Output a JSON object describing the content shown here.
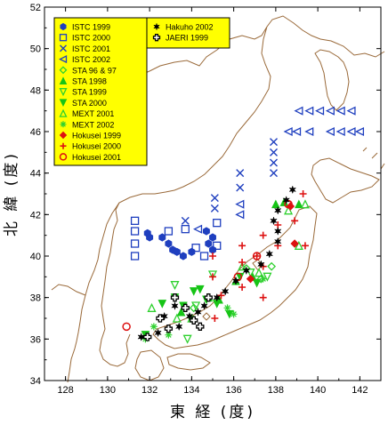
{
  "chart_data": {
    "type": "scatter",
    "xlabel": "東 経 (度)",
    "ylabel": "北 緯 (度)",
    "xlim": [
      127,
      143
    ],
    "ylim": [
      34,
      52
    ],
    "x_ticks": [
      "128",
      "130",
      "132",
      "134",
      "136",
      "138",
      "140",
      "142"
    ],
    "y_ticks": [
      "34",
      "36",
      "38",
      "40",
      "42",
      "44",
      "46",
      "48",
      "50",
      "52"
    ],
    "legend_placement": "top-left",
    "series": [
      {
        "name": "ISTC 1999",
        "marker": "filled-hexagon",
        "color": "#1f3fbf",
        "points": [
          [
            131.9,
            41.1
          ],
          [
            132.0,
            40.9
          ],
          [
            132.6,
            40.9
          ],
          [
            132.9,
            40.6
          ],
          [
            133.1,
            40.3
          ],
          [
            133.3,
            40.2
          ],
          [
            133.6,
            40.0
          ],
          [
            134.0,
            40.2
          ],
          [
            134.8,
            40.6
          ],
          [
            135.0,
            40.3
          ],
          [
            134.7,
            41.2
          ],
          [
            135.0,
            40.9
          ]
        ]
      },
      {
        "name": "ISTC 2000",
        "marker": "open-square",
        "color": "#1f3fbf",
        "points": [
          [
            131.3,
            41.7
          ],
          [
            131.3,
            41.2
          ],
          [
            131.3,
            40.6
          ],
          [
            131.3,
            40.0
          ],
          [
            132.9,
            41.2
          ],
          [
            133.7,
            41.3
          ],
          [
            134.2,
            40.4
          ],
          [
            134.6,
            40.0
          ],
          [
            135.2,
            41.6
          ],
          [
            135.2,
            40.5
          ]
        ]
      },
      {
        "name": "ISTC 2001",
        "marker": "x",
        "color": "#1f3fbf",
        "points": [
          [
            133.7,
            41.7
          ],
          [
            135.1,
            42.3
          ],
          [
            135.1,
            42.8
          ],
          [
            136.3,
            43.3
          ],
          [
            136.3,
            44.0
          ],
          [
            137.9,
            44.0
          ],
          [
            137.9,
            44.5
          ],
          [
            137.9,
            45.0
          ],
          [
            137.9,
            45.5
          ]
        ]
      },
      {
        "name": "ISTC 2002",
        "marker": "open-triangle-left",
        "color": "#1f3fbf",
        "points": [
          [
            134.3,
            41.3
          ],
          [
            136.3,
            42.5
          ],
          [
            136.3,
            42.0
          ],
          [
            138.6,
            46.0
          ],
          [
            139.0,
            46.0
          ],
          [
            139.6,
            46.0
          ],
          [
            139.1,
            47.0
          ],
          [
            139.6,
            47.0
          ],
          [
            140.1,
            47.0
          ],
          [
            140.6,
            47.0
          ],
          [
            141.1,
            47.0
          ],
          [
            141.6,
            47.0
          ],
          [
            140.6,
            46.0
          ],
          [
            141.1,
            46.0
          ],
          [
            141.6,
            46.0
          ],
          [
            142.0,
            46.0
          ]
        ]
      },
      {
        "name": "STA 96 & 97",
        "marker": "open-diamond",
        "color": "#2fd12f",
        "points": [
          [
            134.1,
            37.5
          ],
          [
            136.6,
            39.4
          ],
          [
            137.3,
            38.9
          ],
          [
            137.8,
            39.5
          ]
        ]
      },
      {
        "name": "STA 1998",
        "marker": "filled-triangle-up",
        "color": "#16c416",
        "points": [
          [
            133.5,
            37.3
          ],
          [
            134.8,
            38.0
          ],
          [
            135.3,
            37.9
          ],
          [
            136.1,
            38.8
          ],
          [
            136.9,
            39.0
          ],
          [
            138.0,
            42.5
          ],
          [
            138.4,
            42.6
          ],
          [
            139.1,
            42.5
          ]
        ]
      },
      {
        "name": "STA 1999",
        "marker": "open-triangle-down",
        "color": "#2fd12f",
        "points": [
          [
            133.2,
            38.6
          ],
          [
            133.8,
            36.0
          ],
          [
            134.2,
            37.6
          ],
          [
            135.0,
            39.1
          ],
          [
            136.8,
            39.2
          ],
          [
            137.6,
            39.0
          ]
        ]
      },
      {
        "name": "STA 2000",
        "marker": "filled-triangle-down",
        "color": "#16c416",
        "points": [
          [
            131.8,
            36.2
          ],
          [
            132.6,
            37.7
          ],
          [
            133.2,
            38.0
          ],
          [
            133.6,
            37.6
          ],
          [
            134.1,
            38.3
          ],
          [
            134.4,
            38.4
          ],
          [
            134.7,
            37.9
          ],
          [
            135.2,
            37.7
          ],
          [
            135.8,
            37.2
          ],
          [
            136.3,
            39.0
          ],
          [
            137.1,
            38.7
          ]
        ]
      },
      {
        "name": "MEXT 2001",
        "marker": "open-triangle-up",
        "color": "#2fd12f",
        "points": [
          [
            132.1,
            37.5
          ],
          [
            133.3,
            37.0
          ],
          [
            134.0,
            37.0
          ],
          [
            136.4,
            39.5
          ],
          [
            137.2,
            39.2
          ],
          [
            138.6,
            42.2
          ],
          [
            139.1,
            40.5
          ],
          [
            139.4,
            42.5
          ]
        ]
      },
      {
        "name": "MEXT 2002",
        "marker": "asterisk",
        "color": "#2fd12f",
        "points": [
          [
            131.8,
            36.0
          ],
          [
            132.2,
            36.6
          ],
          [
            132.9,
            36.2
          ],
          [
            134.0,
            37.0
          ],
          [
            135.7,
            37.5
          ],
          [
            136.0,
            37.2
          ],
          [
            137.4,
            38.9
          ]
        ]
      },
      {
        "name": "Hokusei 1999",
        "marker": "filled-diamond",
        "color": "#dd1111",
        "points": [
          [
            136.8,
            38.9
          ],
          [
            138.7,
            42.4
          ],
          [
            138.9,
            40.6
          ]
        ]
      },
      {
        "name": "Hokusei 2000",
        "marker": "plus",
        "color": "#dd1111",
        "points": [
          [
            135.0,
            40.0
          ],
          [
            135.0,
            39.0
          ],
          [
            135.1,
            37.0
          ],
          [
            135.4,
            38.1
          ],
          [
            136.4,
            40.5
          ],
          [
            136.4,
            39.7
          ],
          [
            136.4,
            38.5
          ],
          [
            137.4,
            38.0
          ],
          [
            137.4,
            39.5
          ],
          [
            137.4,
            41.0
          ],
          [
            138.1,
            40.5
          ],
          [
            138.1,
            41.5
          ],
          [
            138.9,
            41.7
          ],
          [
            139.3,
            43.0
          ],
          [
            139.4,
            40.5
          ],
          [
            137.1,
            40.0
          ]
        ]
      },
      {
        "name": "Hokusei 2001",
        "marker": "open-circle",
        "color": "#dd1111",
        "points": [
          [
            130.9,
            36.6
          ],
          [
            136.2,
            39.0
          ],
          [
            137.1,
            40.0
          ],
          [
            138.6,
            42.5
          ]
        ]
      },
      {
        "name": "Hakuho 2002",
        "marker": "filled-star",
        "color": "#000000",
        "points": [
          [
            131.6,
            36.1
          ],
          [
            132.4,
            36.3
          ],
          [
            132.7,
            37.1
          ],
          [
            133.2,
            37.6
          ],
          [
            133.4,
            36.6
          ],
          [
            133.9,
            37.1
          ],
          [
            134.3,
            37.3
          ],
          [
            134.6,
            37.6
          ],
          [
            135.2,
            38.0
          ],
          [
            135.6,
            38.3
          ],
          [
            136.1,
            38.8
          ],
          [
            136.6,
            39.3
          ],
          [
            137.3,
            39.6
          ],
          [
            137.7,
            40.1
          ],
          [
            138.1,
            40.7
          ],
          [
            138.1,
            41.2
          ],
          [
            137.9,
            41.7
          ],
          [
            138.1,
            42.2
          ],
          [
            138.5,
            42.7
          ],
          [
            138.8,
            43.2
          ]
        ]
      },
      {
        "name": "JAERI 1999",
        "marker": "open-cross",
        "color": "#000000",
        "points": [
          [
            131.9,
            36.1
          ],
          [
            132.5,
            37.0
          ],
          [
            132.9,
            36.5
          ],
          [
            133.2,
            38.0
          ],
          [
            133.7,
            37.5
          ],
          [
            134.1,
            36.9
          ],
          [
            134.4,
            36.6
          ],
          [
            134.8,
            38.0
          ]
        ]
      }
    ]
  }
}
